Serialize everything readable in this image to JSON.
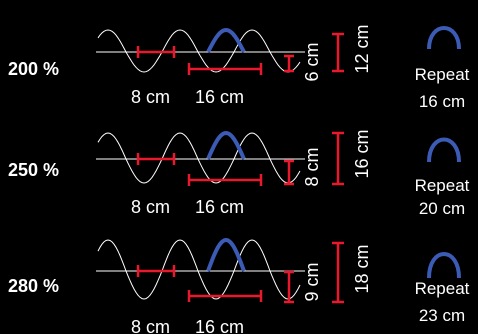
{
  "colors": {
    "background": "#000000",
    "wave_outline": "#ffffff",
    "axis": "#ffffff",
    "measure": "#e8192c",
    "highlight": "#3b5bb5",
    "text": "#ffffff"
  },
  "rows": [
    {
      "percent": "200 %",
      "span_a": "8 cm",
      "span_b": "16 cm",
      "half_height": "6 cm",
      "full_height": "12 cm",
      "repeat_label": "Repeat",
      "repeat_value": "16 cm"
    },
    {
      "percent": "250 %",
      "span_a": "8 cm",
      "span_b": "16 cm",
      "half_height": "8 cm",
      "full_height": "16 cm",
      "repeat_label": "Repeat",
      "repeat_value": "20 cm"
    },
    {
      "percent": "280 %",
      "span_a": "8 cm",
      "span_b": "16 cm",
      "half_height": "9 cm",
      "full_height": "18 cm",
      "repeat_label": "Repeat",
      "repeat_value": "23 cm"
    }
  ]
}
